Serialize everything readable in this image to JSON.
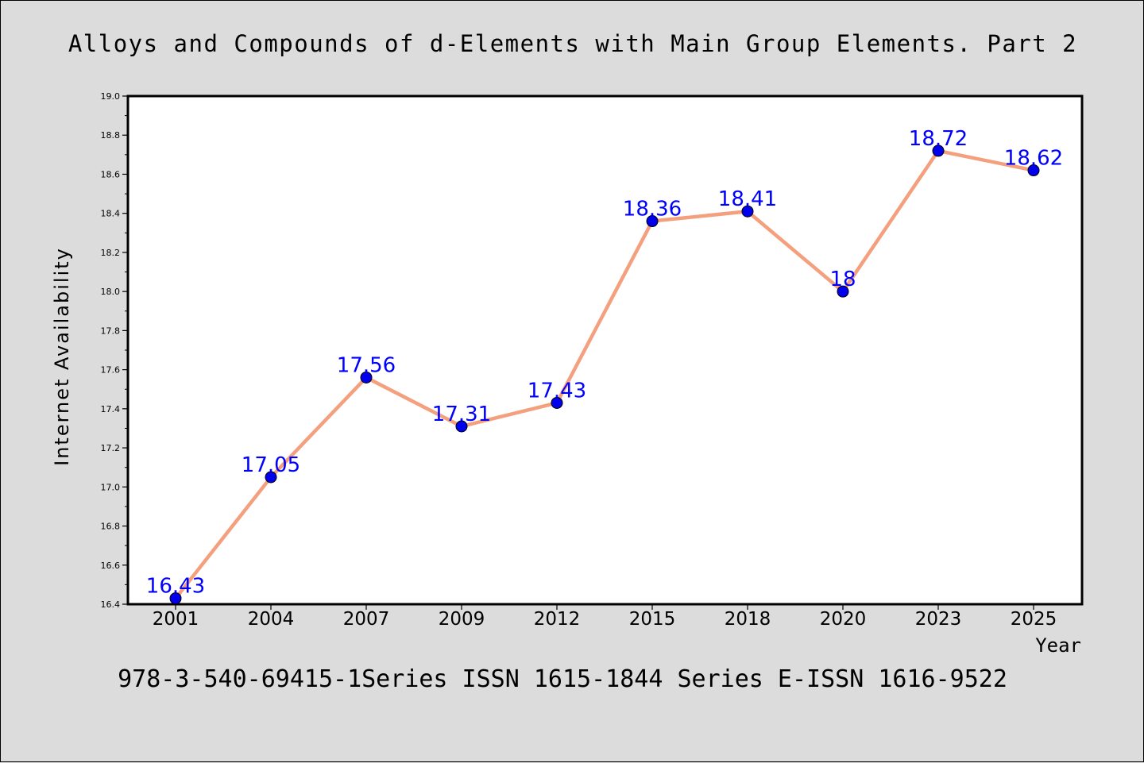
{
  "chart_data": {
    "type": "line",
    "title": "Alloys and Compounds of d-Elements with Main Group Elements. Part 2",
    "footer": "978-3-540-69415-1Series ISSN 1615-1844 Series E-ISSN 1616-9522",
    "xlabel": "Year",
    "ylabel": "Internet Availability",
    "ylim": [
      16.4,
      19.0
    ],
    "y_ticks": [
      "16.4",
      "16.6",
      "16.8",
      "17.0",
      "17.2",
      "17.4",
      "17.6",
      "17.8",
      "18.0",
      "18.2",
      "18.4",
      "18.6",
      "18.8",
      "19.0"
    ],
    "categories": [
      "2001",
      "2004",
      "2007",
      "2009",
      "2012",
      "2015",
      "2018",
      "2020",
      "2023",
      "2025"
    ],
    "series": [
      {
        "values": [
          16.43,
          17.05,
          17.56,
          17.31,
          17.43,
          18.36,
          18.41,
          18.0,
          18.72,
          18.62
        ],
        "labels": [
          "16.43",
          "17.05",
          "17.56",
          "17.31",
          "17.43",
          "18.36",
          "18.41",
          "18",
          "18.72",
          "18.62"
        ],
        "line_color": "#f4a07e",
        "marker_color": "#0000ee"
      }
    ],
    "grid": false,
    "legend": "none"
  }
}
